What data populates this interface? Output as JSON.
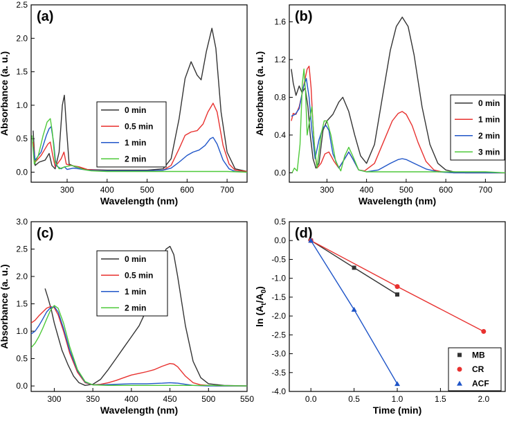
{
  "chart_data": [
    {
      "panel": "(a)",
      "type": "line",
      "xlabel": "Wavelength (nm)",
      "ylabel": "Absorbance (a. u.)",
      "xlim": [
        210,
        750
      ],
      "ylim": [
        -0.15,
        2.5
      ],
      "xticks": [
        300,
        400,
        500,
        600,
        700
      ],
      "yticks": [
        0.0,
        0.5,
        1.0,
        1.5,
        2.0,
        2.5
      ],
      "ytick_labels": [
        "0.0",
        "0.5",
        "1.0",
        "1.5",
        "2.0",
        "2.5"
      ],
      "legend_position": "center",
      "series": [
        {
          "name": "0 min",
          "color": "#333333",
          "x": [
            215,
            220,
            230,
            245,
            255,
            262,
            270,
            280,
            288,
            293,
            298,
            305,
            320,
            350,
            400,
            450,
            500,
            540,
            560,
            580,
            595,
            610,
            625,
            635,
            648,
            662,
            672,
            685,
            700,
            720,
            750
          ],
          "y": [
            0.62,
            0.1,
            0.15,
            0.18,
            0.28,
            0.1,
            0.05,
            0.3,
            1.0,
            1.15,
            0.7,
            0.12,
            0.08,
            0.04,
            0.03,
            0.03,
            0.03,
            0.05,
            0.2,
            0.8,
            1.4,
            1.65,
            1.45,
            1.38,
            1.8,
            2.15,
            1.85,
            0.9,
            0.3,
            0.05,
            0.01
          ]
        },
        {
          "name": "0.5 min",
          "color": "#e8312f",
          "x": [
            215,
            220,
            235,
            245,
            252,
            258,
            264,
            270,
            285,
            292,
            298,
            310,
            330,
            350,
            400,
            450,
            500,
            540,
            560,
            580,
            595,
            610,
            625,
            640,
            652,
            665,
            675,
            690,
            705,
            720,
            750
          ],
          "y": [
            0.45,
            0.15,
            0.25,
            0.35,
            0.42,
            0.45,
            0.25,
            0.08,
            0.2,
            0.3,
            0.12,
            0.1,
            0.08,
            0.04,
            0.02,
            0.02,
            0.02,
            0.03,
            0.1,
            0.35,
            0.55,
            0.6,
            0.62,
            0.72,
            0.9,
            1.03,
            0.9,
            0.4,
            0.12,
            0.03,
            0.01
          ]
        },
        {
          "name": "1 min",
          "color": "#1f55c8",
          "x": [
            215,
            220,
            235,
            248,
            255,
            260,
            266,
            272,
            285,
            293,
            300,
            315,
            330,
            350,
            400,
            450,
            500,
            540,
            560,
            580,
            600,
            615,
            630,
            645,
            658,
            665,
            675,
            690,
            705,
            720,
            750
          ],
          "y": [
            0.38,
            0.18,
            0.3,
            0.55,
            0.65,
            0.68,
            0.45,
            0.1,
            0.05,
            0.08,
            0.04,
            0.06,
            0.05,
            0.03,
            0.02,
            0.02,
            0.02,
            0.03,
            0.06,
            0.15,
            0.25,
            0.3,
            0.33,
            0.4,
            0.5,
            0.52,
            0.42,
            0.18,
            0.05,
            0.01,
            0.0
          ]
        },
        {
          "name": "2 min",
          "color": "#4ec93a",
          "x": [
            212,
            218,
            228,
            240,
            250,
            258,
            263,
            270,
            280,
            295,
            310,
            325,
            340,
            360,
            400,
            500,
            600,
            700,
            750
          ],
          "y": [
            0.55,
            0.12,
            0.25,
            0.55,
            0.75,
            0.8,
            0.6,
            0.15,
            0.05,
            0.08,
            0.1,
            0.08,
            0.04,
            0.02,
            0.01,
            0.01,
            0.01,
            0.01,
            0.0
          ]
        }
      ]
    },
    {
      "panel": "(b)",
      "type": "line",
      "xlabel": "Wavelength (nm)",
      "ylabel": "Absorbance (a. u.)",
      "xlim": [
        205,
        750
      ],
      "ylim": [
        -0.1,
        1.78
      ],
      "xticks": [
        200,
        300,
        400,
        500,
        600,
        700
      ],
      "yticks": [
        0.0,
        0.4,
        0.8,
        1.2,
        1.6
      ],
      "ytick_labels": [
        "0.0",
        "0.4",
        "0.8",
        "1.2",
        "1.6"
      ],
      "legend_position": "right",
      "series": [
        {
          "name": "0 min",
          "color": "#333333",
          "x": [
            210,
            215,
            222,
            230,
            237,
            245,
            252,
            258,
            265,
            272,
            280,
            290,
            300,
            315,
            330,
            340,
            355,
            370,
            385,
            400,
            420,
            440,
            460,
            475,
            490,
            505,
            520,
            540,
            560,
            580,
            600,
            620,
            650,
            700,
            750
          ],
          "y": [
            1.1,
            0.95,
            0.82,
            0.92,
            0.85,
            0.9,
            0.7,
            0.4,
            0.15,
            0.05,
            0.1,
            0.45,
            0.55,
            0.62,
            0.75,
            0.8,
            0.65,
            0.4,
            0.18,
            0.1,
            0.3,
            0.8,
            1.3,
            1.55,
            1.65,
            1.55,
            1.25,
            0.7,
            0.3,
            0.1,
            0.03,
            0.01,
            0.0,
            0.0,
            0.0
          ]
        },
        {
          "name": "1 min",
          "color": "#e8312f",
          "x": [
            210,
            215,
            222,
            230,
            238,
            245,
            250,
            255,
            260,
            265,
            270,
            275,
            285,
            295,
            305,
            318,
            330,
            345,
            355,
            365,
            380,
            395,
            420,
            445,
            465,
            480,
            490,
            500,
            515,
            530,
            550,
            570,
            590,
            620,
            680,
            750
          ],
          "y": [
            0.55,
            0.63,
            0.62,
            0.7,
            0.85,
            1.0,
            1.1,
            1.13,
            0.9,
            0.5,
            0.2,
            0.05,
            0.1,
            0.2,
            0.22,
            0.12,
            0.05,
            0.15,
            0.22,
            0.15,
            0.03,
            0.02,
            0.1,
            0.35,
            0.55,
            0.63,
            0.65,
            0.62,
            0.5,
            0.32,
            0.12,
            0.03,
            0.01,
            0.0,
            0.0,
            0.0
          ]
        },
        {
          "name": "2 min",
          "color": "#1f55c8",
          "x": [
            210,
            220,
            230,
            240,
            248,
            255,
            262,
            270,
            280,
            290,
            298,
            305,
            315,
            330,
            345,
            355,
            365,
            380,
            400,
            430,
            460,
            480,
            490,
            500,
            520,
            550,
            580,
            620,
            750
          ],
          "y": [
            0.6,
            0.62,
            0.68,
            0.9,
            1.0,
            0.8,
            0.45,
            0.15,
            0.35,
            0.48,
            0.5,
            0.45,
            0.2,
            0.05,
            0.15,
            0.22,
            0.15,
            0.03,
            0.01,
            0.03,
            0.1,
            0.14,
            0.15,
            0.14,
            0.1,
            0.04,
            0.01,
            0.0,
            0.0
          ]
        },
        {
          "name": "3 min",
          "color": "#4ec93a",
          "x": [
            212,
            218,
            225,
            232,
            238,
            242,
            246,
            250,
            256,
            262,
            268,
            275,
            285,
            293,
            300,
            310,
            322,
            335,
            345,
            355,
            365,
            380,
            400,
            500,
            600,
            700,
            750
          ],
          "y": [
            0.0,
            0.05,
            0.02,
            0.3,
            0.95,
            1.1,
            0.85,
            0.4,
            0.55,
            0.7,
            0.3,
            0.05,
            0.4,
            0.55,
            0.55,
            0.4,
            0.12,
            0.02,
            0.18,
            0.27,
            0.18,
            0.03,
            0.01,
            0.01,
            0.01,
            0.01,
            0.0
          ]
        }
      ]
    },
    {
      "panel": "(c)",
      "type": "line",
      "xlabel": "Wavelength (nm)",
      "ylabel": "Absorbance (a. u.)",
      "xlim": [
        270,
        550
      ],
      "ylim": [
        -0.1,
        3.0
      ],
      "xticks": [
        300,
        350,
        400,
        450,
        500,
        550
      ],
      "yticks": [
        0.0,
        0.5,
        1.0,
        1.5,
        2.0,
        2.5,
        3.0
      ],
      "ytick_labels": [
        "0.0",
        "0.5",
        "1.0",
        "1.5",
        "2.0",
        "2.5",
        "3.0"
      ],
      "legend_position": "right",
      "series": [
        {
          "name": "0 min",
          "color": "#333333",
          "x": [
            288,
            292,
            296,
            300,
            305,
            310,
            318,
            325,
            332,
            340,
            350,
            360,
            370,
            380,
            390,
            400,
            410,
            420,
            430,
            440,
            445,
            450,
            455,
            460,
            470,
            480,
            490,
            500,
            520,
            550
          ],
          "y": [
            1.78,
            1.6,
            1.4,
            1.15,
            0.9,
            0.65,
            0.38,
            0.18,
            0.06,
            0.01,
            0.03,
            0.12,
            0.3,
            0.5,
            0.7,
            0.9,
            1.1,
            1.4,
            1.85,
            2.35,
            2.5,
            2.55,
            2.4,
            2.0,
            1.1,
            0.45,
            0.15,
            0.04,
            0.01,
            0.0
          ]
        },
        {
          "name": "0.5 min",
          "color": "#e8312f",
          "x": [
            270,
            275,
            280,
            285,
            290,
            295,
            300,
            305,
            312,
            320,
            330,
            340,
            350,
            360,
            370,
            380,
            390,
            400,
            410,
            420,
            430,
            440,
            450,
            455,
            460,
            470,
            480,
            490,
            510,
            550
          ],
          "y": [
            1.15,
            1.2,
            1.28,
            1.35,
            1.42,
            1.45,
            1.43,
            1.3,
            1.0,
            0.6,
            0.25,
            0.06,
            0.02,
            0.03,
            0.06,
            0.1,
            0.15,
            0.2,
            0.23,
            0.26,
            0.3,
            0.36,
            0.41,
            0.4,
            0.35,
            0.18,
            0.06,
            0.02,
            0.0,
            0.0
          ]
        },
        {
          "name": "1 min",
          "color": "#1f55c8",
          "x": [
            270,
            275,
            280,
            285,
            290,
            295,
            300,
            305,
            312,
            320,
            330,
            340,
            350,
            360,
            380,
            400,
            420,
            440,
            450,
            460,
            470,
            480,
            500,
            550
          ],
          "y": [
            0.95,
            1.0,
            1.1,
            1.22,
            1.35,
            1.43,
            1.45,
            1.35,
            1.05,
            0.65,
            0.28,
            0.07,
            0.02,
            0.02,
            0.03,
            0.04,
            0.04,
            0.05,
            0.06,
            0.05,
            0.03,
            0.01,
            0.0,
            0.0
          ]
        },
        {
          "name": "2 min",
          "color": "#4ec93a",
          "x": [
            270,
            275,
            280,
            285,
            290,
            295,
            300,
            305,
            312,
            320,
            330,
            340,
            350,
            370,
            400,
            450,
            500,
            550
          ],
          "y": [
            0.7,
            0.78,
            0.9,
            1.05,
            1.22,
            1.38,
            1.47,
            1.42,
            1.15,
            0.72,
            0.3,
            0.08,
            0.02,
            0.01,
            0.01,
            0.01,
            0.01,
            0.0
          ]
        }
      ]
    },
    {
      "panel": "(d)",
      "type": "line",
      "xlabel": "Time (min)",
      "ylabel": "ln (At/A0)",
      "ylabel_main": "ln (A",
      "ylabel_sub_t": "t",
      "ylabel_mid": "/A",
      "ylabel_sub_0": "0",
      "ylabel_end": ")",
      "xlim": [
        -0.25,
        2.25
      ],
      "ylim": [
        -4.0,
        0.5
      ],
      "xticks": [
        0.0,
        0.5,
        1.0,
        1.5,
        2.0
      ],
      "xtick_labels": [
        "0.0",
        "0.5",
        "1.0",
        "1.5",
        "2.0"
      ],
      "yticks": [
        0.5,
        0.0,
        -0.5,
        -1.0,
        -1.5,
        -2.0,
        -2.5,
        -3.0,
        -3.5,
        -4.0
      ],
      "ytick_labels": [
        "0.5",
        "0.0",
        "-0.5",
        "-1.0",
        "-1.5",
        "-2.0",
        "-2.5",
        "-3.0",
        "-3.5",
        "-4.0"
      ],
      "legend_position": "bottom-right",
      "series": [
        {
          "name": "MB",
          "color": "#333333",
          "marker": "square",
          "x": [
            0,
            0.5,
            1.0
          ],
          "y": [
            0,
            -0.72,
            -1.43
          ]
        },
        {
          "name": "CR",
          "color": "#e8312f",
          "marker": "circle",
          "x": [
            0,
            1.0,
            2.0
          ],
          "y": [
            0,
            -1.22,
            -2.41
          ]
        },
        {
          "name": "ACF",
          "color": "#1f55c8",
          "marker": "triangle",
          "x": [
            0,
            0.5,
            1.0
          ],
          "y": [
            0,
            -1.83,
            -3.8
          ]
        }
      ]
    }
  ]
}
